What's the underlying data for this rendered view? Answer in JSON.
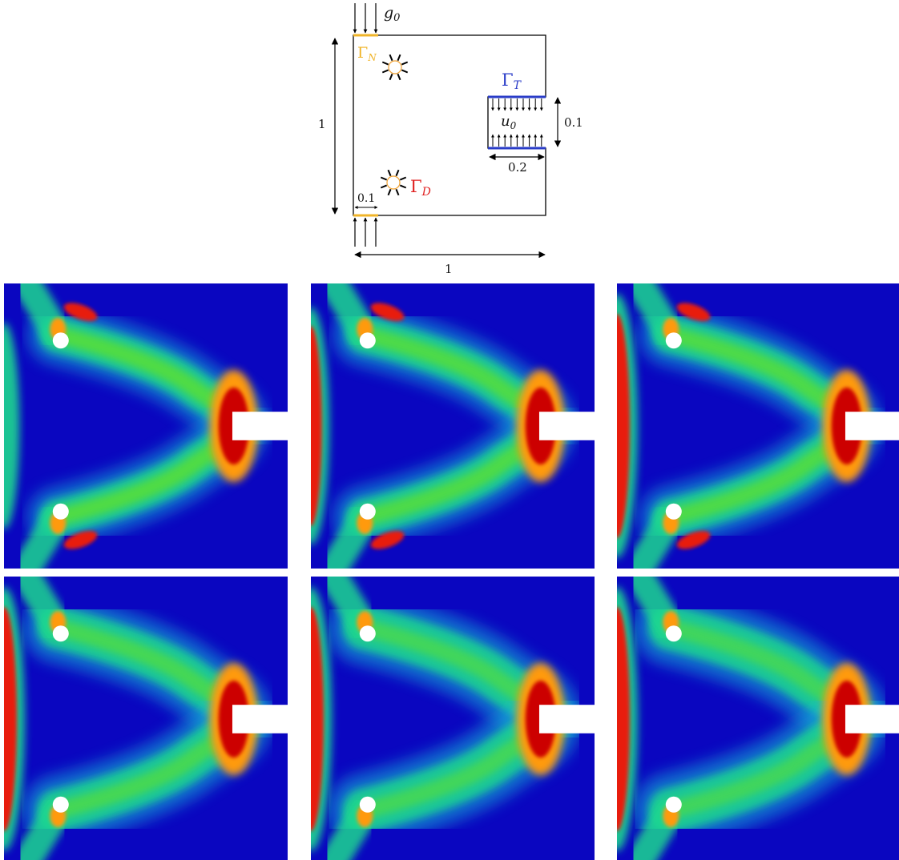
{
  "schematic": {
    "g0": {
      "base": "g",
      "sub": "0"
    },
    "gamma_n": {
      "base": "Γ",
      "sub": "N",
      "color": "#f0b429"
    },
    "gamma_t": {
      "base": "Γ",
      "sub": "T",
      "color": "#2a3cc8"
    },
    "gamma_d": {
      "base": "Γ",
      "sub": "D",
      "color": "#e02020"
    },
    "u0": {
      "base": "u",
      "sub": "0"
    },
    "dim_height": "1",
    "dim_width": "1",
    "dim_slot_height": "0.1",
    "dim_slot_width": "0.2",
    "dim_support_width": "0.1"
  },
  "colormap": {
    "background": "#0a06c0",
    "stops": [
      "#0a06c0",
      "#0c4ee8",
      "#18b8d8",
      "#1fd890",
      "#5be030",
      "#d8e818",
      "#ff9a10",
      "#e81a0c",
      "#cc0000"
    ]
  },
  "panels": [
    {
      "row": 0,
      "col": 0,
      "left_band": 0.35,
      "diffuse": 0.2
    },
    {
      "row": 0,
      "col": 1,
      "left_band": 0.7,
      "diffuse": 0.3
    },
    {
      "row": 0,
      "col": 2,
      "left_band": 1.0,
      "diffuse": 0.3
    },
    {
      "row": 1,
      "col": 0,
      "left_band": 1.0,
      "diffuse": 0.6
    },
    {
      "row": 1,
      "col": 1,
      "left_band": 1.0,
      "diffuse": 0.75
    },
    {
      "row": 1,
      "col": 2,
      "left_band": 1.0,
      "diffuse": 0.8
    }
  ]
}
